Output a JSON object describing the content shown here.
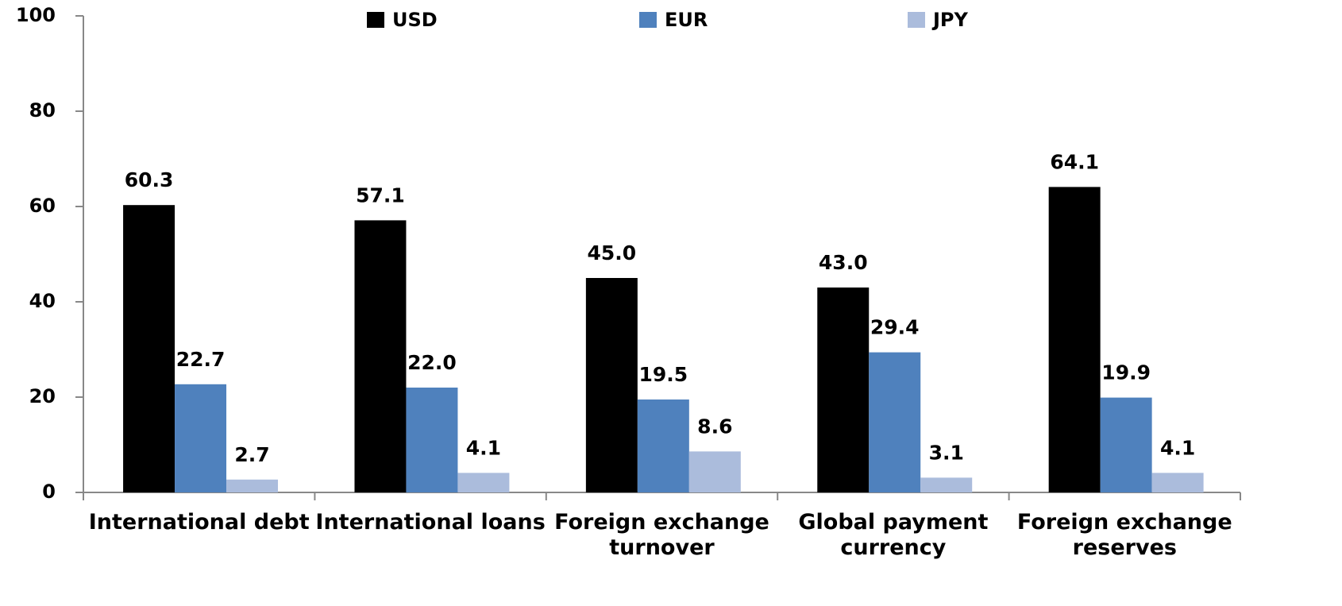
{
  "chart_data": {
    "type": "bar",
    "categories": [
      "International debt",
      "International loans",
      "Foreign exchange turnover",
      "Global payment currency",
      "Foreign exchange reserves"
    ],
    "series": [
      {
        "name": "USD",
        "color": "#000000",
        "values": [
          60.3,
          57.1,
          45,
          43,
          64.1
        ],
        "value_labels": [
          "60.3",
          "57.1",
          "45.0",
          "43.0",
          "64.1"
        ]
      },
      {
        "name": "EUR",
        "color": "#4f81bd",
        "values": [
          22.7,
          22,
          19.5,
          29.4,
          19.9
        ],
        "value_labels": [
          "22.7",
          "22.0",
          "19.5",
          "29.4",
          "19.9"
        ]
      },
      {
        "name": "JPY",
        "color": "#abbcdc",
        "values": [
          2.7,
          4.1,
          8.6,
          3.1,
          4.1
        ],
        "value_labels": [
          "2.7",
          "4.1",
          "8.6",
          "3.1",
          "4.1"
        ]
      }
    ],
    "ylim": [
      0,
      100
    ],
    "yticks": [
      0,
      20,
      40,
      60,
      80,
      100
    ],
    "grid": false,
    "legend": "top"
  }
}
